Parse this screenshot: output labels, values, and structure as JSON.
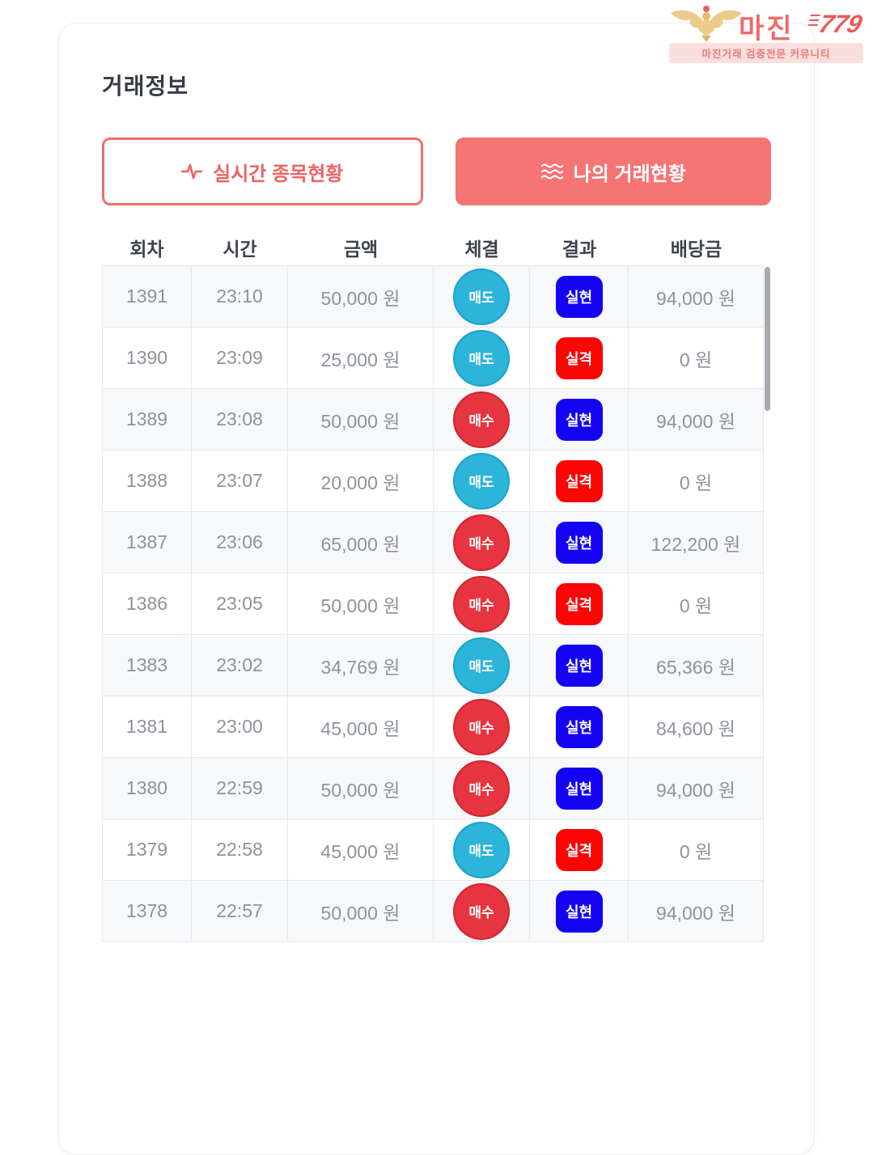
{
  "logo": {
    "brand": "마진",
    "brand_suffix": "779",
    "tagline": "마진거래 검증전문 커뮤니티"
  },
  "page": {
    "title": "거래정보"
  },
  "toolbar": {
    "realtime_button": "실시간 종목현황",
    "my_trades_button": "나의 거래현황"
  },
  "table": {
    "columns": [
      "회차",
      "시간",
      "금액",
      "체결",
      "결과",
      "배당금"
    ],
    "rows": [
      {
        "round": "1391",
        "time": "23:10",
        "amount": "50,000 원",
        "execution": "매도",
        "execution_type": "sell",
        "result": "실현",
        "result_type": "realized",
        "payout": "94,000 원"
      },
      {
        "round": "1390",
        "time": "23:09",
        "amount": "25,000 원",
        "execution": "매도",
        "execution_type": "sell",
        "result": "실격",
        "result_type": "disqualified",
        "payout": "0 원"
      },
      {
        "round": "1389",
        "time": "23:08",
        "amount": "50,000 원",
        "execution": "매수",
        "execution_type": "buy",
        "result": "실현",
        "result_type": "realized",
        "payout": "94,000 원"
      },
      {
        "round": "1388",
        "time": "23:07",
        "amount": "20,000 원",
        "execution": "매도",
        "execution_type": "sell",
        "result": "실격",
        "result_type": "disqualified",
        "payout": "0 원"
      },
      {
        "round": "1387",
        "time": "23:06",
        "amount": "65,000 원",
        "execution": "매수",
        "execution_type": "buy",
        "result": "실현",
        "result_type": "realized",
        "payout": "122,200 원"
      },
      {
        "round": "1386",
        "time": "23:05",
        "amount": "50,000 원",
        "execution": "매수",
        "execution_type": "buy",
        "result": "실격",
        "result_type": "disqualified",
        "payout": "0 원"
      },
      {
        "round": "1383",
        "time": "23:02",
        "amount": "34,769 원",
        "execution": "매도",
        "execution_type": "sell",
        "result": "실현",
        "result_type": "realized",
        "payout": "65,366 원"
      },
      {
        "round": "1381",
        "time": "23:00",
        "amount": "45,000 원",
        "execution": "매수",
        "execution_type": "buy",
        "result": "실현",
        "result_type": "realized",
        "payout": "84,600 원"
      },
      {
        "round": "1380",
        "time": "22:59",
        "amount": "50,000 원",
        "execution": "매수",
        "execution_type": "buy",
        "result": "실현",
        "result_type": "realized",
        "payout": "94,000 원"
      },
      {
        "round": "1379",
        "time": "22:58",
        "amount": "45,000 원",
        "execution": "매도",
        "execution_type": "sell",
        "result": "실격",
        "result_type": "disqualified",
        "payout": "0 원"
      },
      {
        "round": "1378",
        "time": "22:57",
        "amount": "50,000 원",
        "execution": "매수",
        "execution_type": "buy",
        "result": "실현",
        "result_type": "realized",
        "payout": "94,000 원"
      }
    ]
  },
  "colors": {
    "accent_salmon": "#f57474",
    "outline_salmon": "#f26d6d",
    "sell_cyan": "#2db4da",
    "buy_red": "#e63540",
    "realized_blue": "#1402f2",
    "disqualified_red": "#fb0505",
    "row_stripe": "#f7f8fa",
    "text_gray": "#8d939b"
  }
}
